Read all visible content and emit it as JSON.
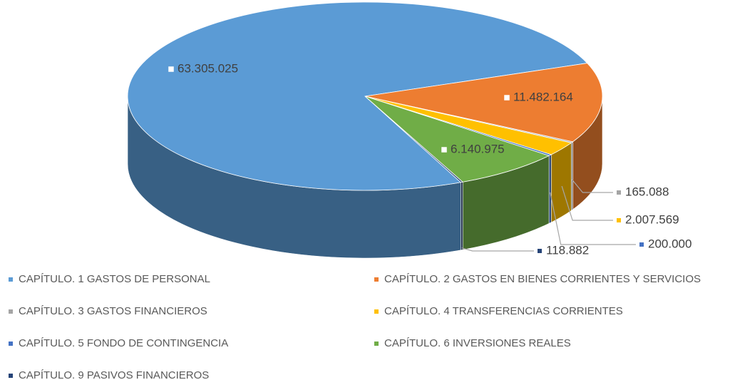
{
  "chart_data": {
    "type": "pie3d",
    "categories": [
      "CAPÍTULO. 1 GASTOS DE PERSONAL",
      "CAPÍTULO. 2 GASTOS EN BIENES CORRIENTES Y SERVICIOS",
      "CAPÍTULO. 3 GASTOS FINANCIEROS",
      "CAPÍTULO. 4 TRANSFERENCIAS CORRIENTES",
      "CAPÍTULO. 5 FONDO DE CONTINGENCIA",
      "CAPÍTULO. 6 INVERSIONES REALES",
      "CAPÍTULO. 9 PASIVOS FINANCIEROS"
    ],
    "values": [
      63305025,
      11482164,
      165088,
      2007569,
      200000,
      6140975,
      118882
    ],
    "value_labels": [
      "63.305.025",
      "11.482.164",
      "165.088",
      "2.007.569",
      "200.000",
      "6.140.975",
      "118.882"
    ],
    "colors": [
      "#5b9bd5",
      "#ed7d31",
      "#a5a5a5",
      "#ffc000",
      "#4472c4",
      "#70ad47",
      "#264478"
    ],
    "legend": "bottom"
  }
}
